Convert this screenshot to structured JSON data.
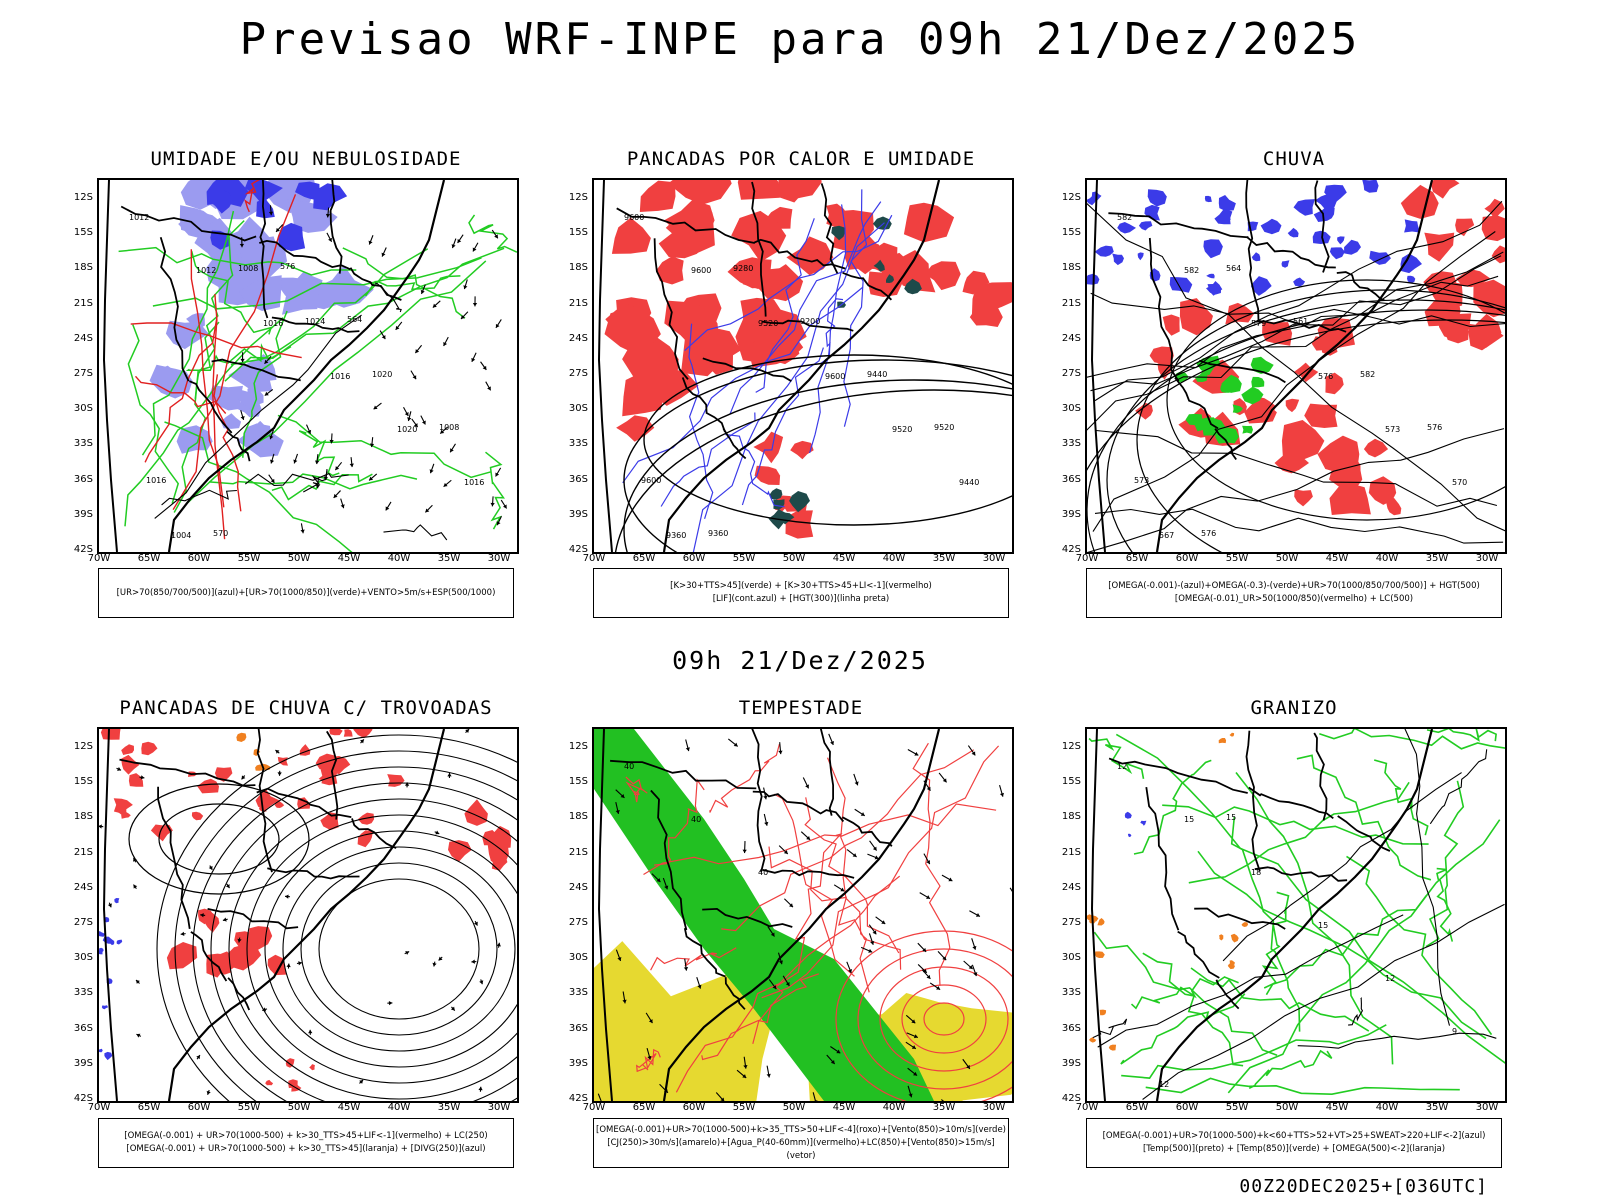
{
  "title": "Previsao WRF-INPE  para 09h 21/Dez/2025",
  "mid_title": "09h 21/Dez/2025",
  "footer": "00Z20DEC2025+[036UTC]",
  "lat_labels": [
    "12S",
    "15S",
    "18S",
    "21S",
    "24S",
    "27S",
    "30S",
    "33S",
    "36S",
    "39S",
    "42S"
  ],
  "lon_labels": [
    "70W",
    "65W",
    "60W",
    "55W",
    "50W",
    "45W",
    "40W",
    "35W",
    "30W"
  ],
  "colors": {
    "blue_fill": "#9b9bf0",
    "blue_dark": "#3b3be8",
    "green": "#22cc22",
    "green_fill": "#22c022",
    "red_fill": "#f04040",
    "yellow_fill": "#e6d930",
    "orange": "#f08020",
    "dark_teal": "#1e4a4a"
  },
  "panels": [
    {
      "title": "UMIDADE E/OU NEBULOSIDADE",
      "legend": [
        "[UR>70(850/700/500)](azul)+[UR>70(1000/850)](verde)+VENTO>5m/s+ESP(500/1000)"
      ],
      "contour_labels": [
        "1012",
        "1012",
        "1016",
        "1016",
        "1020",
        "1016",
        "1004",
        "1008",
        "1024",
        "1020",
        "1008",
        "1016",
        "570",
        "576",
        "564"
      ]
    },
    {
      "title": "PANCADAS POR CALOR E UMIDADE",
      "legend": [
        "[K>30+TTS>45](verde) + [K>30+TTS>45+LI<-1](vermelho)",
        "[LIF](cont.azul) + [HGT(300)](linha preta)"
      ],
      "contour_labels": [
        "9600",
        "9600",
        "9520",
        "9600",
        "9520",
        "9440",
        "9360",
        "9280",
        "9200",
        "9440",
        "9520",
        "9600",
        "9360"
      ]
    },
    {
      "title": "CHUVA",
      "legend": [
        "[OMEGA(-0.001)-(azul)+OMEGA(-0.3)-(verde)+UR>70(1000/850/700/500)] + HGT(500)",
        "[OMEGA(-0.01)_UR>50(1000/850)(vermelho) + LC(500)"
      ],
      "contour_labels": [
        "582",
        "582",
        "579",
        "576",
        "573",
        "570",
        "567",
        "564",
        "561",
        "582",
        "576",
        "573",
        "576"
      ]
    },
    {
      "title": "PANCADAS DE CHUVA C/ TROVOADAS",
      "legend": [
        "[OMEGA(-0.001) + UR>70(1000-500) + k>30_TTS>45+LIF<-1](vermelho) + LC(250)",
        "[OMEGA(-0.001) + UR>70(1000-500) + k>30_TTS>45](laranja) + [DIVG(250)](azul)"
      ],
      "contour_labels": []
    },
    {
      "title": "TEMPESTADE",
      "legend": [
        "[OMEGA(-0.001)+UR>70(1000-500)+k>35_TTS>50+LIF<-4](roxo)+[Vento(850)>10m/s](verde)",
        "[CJ(250)>30m/s](amarelo)+[Agua_P(40-60mm)](vermelho)+LC(850)+[Vento(850)>15m/s](vetor)"
      ],
      "contour_labels": [
        "40",
        "40",
        "40"
      ]
    },
    {
      "title": "GRANIZO",
      "legend": [
        "[OMEGA(-0.001)+UR>70(1000-500)+k<60+TTS>52+VT>25+SWEAT>220+LIF<-2](azul)",
        "[Temp(500)](preto) + [Temp(850)](verde) + [OMEGA(500)<-2](laranja)"
      ],
      "contour_labels": [
        "12",
        "15",
        "18",
        "15",
        "12",
        "9",
        "12",
        "15"
      ]
    }
  ]
}
